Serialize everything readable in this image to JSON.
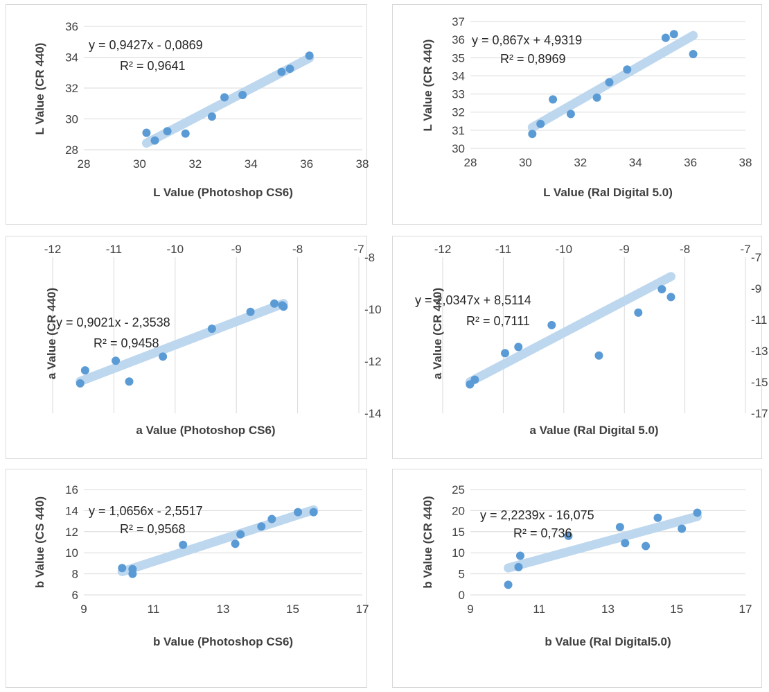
{
  "colors": {
    "marker": "#5b9bd5",
    "trend": "#bdd7ee",
    "gridline": "#d9d9d9",
    "text": "#404040"
  },
  "chart_data": [
    {
      "type": "scatter",
      "xlabel": "L Value (Photoshop CS6)",
      "ylabel": "L Value  (CR 440)",
      "xlim": [
        28,
        38
      ],
      "ylim": [
        28,
        36
      ],
      "xticks": [
        28,
        30,
        32,
        34,
        36,
        38
      ],
      "yticks": [
        28,
        30,
        32,
        34,
        36
      ],
      "x_axis_at": "bottom",
      "y_axis_at": "left",
      "equation": "y = 0,9427x - 0,0869",
      "r2": "R² = 0,9641",
      "trendline": {
        "slope": 0.9427,
        "intercept": -0.0869
      },
      "grid": "horizontal",
      "points": [
        {
          "x": 30.25,
          "y": 29.1
        },
        {
          "x": 30.55,
          "y": 28.6
        },
        {
          "x": 31.0,
          "y": 29.2
        },
        {
          "x": 31.65,
          "y": 29.05
        },
        {
          "x": 32.6,
          "y": 30.15
        },
        {
          "x": 33.05,
          "y": 31.4
        },
        {
          "x": 33.7,
          "y": 31.55
        },
        {
          "x": 35.1,
          "y": 33.05
        },
        {
          "x": 35.4,
          "y": 33.25
        },
        {
          "x": 36.1,
          "y": 34.1
        }
      ]
    },
    {
      "type": "scatter",
      "xlabel": "L Value (Ral Digital 5.0)",
      "ylabel": "L Value (CR 440)",
      "xlim": [
        28,
        38
      ],
      "ylim": [
        30,
        37
      ],
      "xticks": [
        28,
        30,
        32,
        34,
        36,
        38
      ],
      "yticks": [
        30,
        31,
        32,
        33,
        34,
        35,
        36,
        37
      ],
      "x_axis_at": "bottom",
      "y_axis_at": "left",
      "equation": "y = 0,867x + 4,9319",
      "r2": "R² = 0,8969",
      "trendline": {
        "slope": 0.867,
        "intercept": 4.9319
      },
      "grid": "horizontal",
      "points": [
        {
          "x": 30.25,
          "y": 30.8
        },
        {
          "x": 30.55,
          "y": 31.35
        },
        {
          "x": 31.0,
          "y": 32.7
        },
        {
          "x": 31.65,
          "y": 31.9
        },
        {
          "x": 32.6,
          "y": 32.8
        },
        {
          "x": 33.05,
          "y": 33.65
        },
        {
          "x": 33.7,
          "y": 34.35
        },
        {
          "x": 35.1,
          "y": 36.1
        },
        {
          "x": 35.4,
          "y": 36.3
        },
        {
          "x": 36.1,
          "y": 35.2
        }
      ]
    },
    {
      "type": "scatter",
      "xlabel": "a Value (Photoshop CS6)",
      "ylabel": "a Value (CR 440)",
      "xlim": [
        -12,
        -7
      ],
      "ylim": [
        -14,
        -8
      ],
      "xticks": [
        -12,
        -11,
        -10,
        -9,
        -8,
        -7
      ],
      "yticks": [
        -14,
        -12,
        -10,
        -8
      ],
      "x_axis_at": "top",
      "y_axis_at": "right",
      "equation": "y = 0,9021x - 2,3538",
      "r2": "R² = 0,9458",
      "trendline": {
        "slope": 0.9021,
        "intercept": -2.3538
      },
      "grid": "vertical",
      "points": [
        {
          "x": -11.55,
          "y": -12.85
        },
        {
          "x": -11.47,
          "y": -12.35
        },
        {
          "x": -10.97,
          "y": -11.98
        },
        {
          "x": -10.75,
          "y": -12.78
        },
        {
          "x": -10.2,
          "y": -11.82
        },
        {
          "x": -9.4,
          "y": -10.75
        },
        {
          "x": -8.77,
          "y": -10.1
        },
        {
          "x": -8.38,
          "y": -9.78
        },
        {
          "x": -8.25,
          "y": -9.85
        },
        {
          "x": -8.23,
          "y": -9.9
        }
      ]
    },
    {
      "type": "scatter",
      "xlabel": "a Value  (Ral Digital 5.0)",
      "ylabel": "a Value (CR 440)",
      "xlim": [
        -12,
        -7
      ],
      "ylim": [
        -17,
        -7
      ],
      "xticks": [
        -12,
        -11,
        -10,
        -9,
        -8,
        -7
      ],
      "yticks": [
        -17,
        -15,
        -13,
        -11,
        -9,
        -7
      ],
      "x_axis_at": "top",
      "y_axis_at": "right",
      "equation": "y = 2,0347x + 8,5114",
      "r2": "R² = 0,7111",
      "trendline": {
        "slope": 2.0347,
        "intercept": 8.5114
      },
      "grid": "vertical",
      "points": [
        {
          "x": -11.55,
          "y": -15.15
        },
        {
          "x": -11.47,
          "y": -14.85
        },
        {
          "x": -10.97,
          "y": -13.15
        },
        {
          "x": -10.75,
          "y": -12.75
        },
        {
          "x": -10.2,
          "y": -11.35
        },
        {
          "x": -9.42,
          "y": -13.3
        },
        {
          "x": -8.77,
          "y": -10.55
        },
        {
          "x": -8.38,
          "y": -9.05
        },
        {
          "x": -8.23,
          "y": -9.55
        }
      ]
    },
    {
      "type": "scatter",
      "xlabel": "b Value (Photoshop CS6)",
      "ylabel": "b Value (CS 440)",
      "xlim": [
        9,
        17
      ],
      "ylim": [
        6,
        16
      ],
      "xticks": [
        9,
        11,
        13,
        15,
        17
      ],
      "yticks": [
        6,
        8,
        10,
        12,
        14,
        16
      ],
      "x_axis_at": "bottom",
      "y_axis_at": "left",
      "equation": "y = 1,0656x - 2,5517",
      "r2": "R² = 0,9568",
      "trendline": {
        "slope": 1.0656,
        "intercept": -2.5517
      },
      "grid": "horizontal",
      "points": [
        {
          "x": 10.1,
          "y": 8.55
        },
        {
          "x": 10.4,
          "y": 8.45
        },
        {
          "x": 10.4,
          "y": 8.0
        },
        {
          "x": 11.85,
          "y": 10.75
        },
        {
          "x": 13.35,
          "y": 10.85
        },
        {
          "x": 13.5,
          "y": 11.75
        },
        {
          "x": 14.1,
          "y": 12.5
        },
        {
          "x": 14.4,
          "y": 13.2
        },
        {
          "x": 15.15,
          "y": 13.85
        },
        {
          "x": 15.6,
          "y": 13.85
        }
      ]
    },
    {
      "type": "scatter",
      "xlabel": "b Value (Ral Digital5.0)",
      "ylabel": "b Value (CR 440)",
      "xlim": [
        9,
        17
      ],
      "ylim": [
        0,
        25
      ],
      "xticks": [
        9,
        11,
        13,
        15,
        17
      ],
      "yticks": [
        0,
        5,
        10,
        15,
        20,
        25
      ],
      "x_axis_at": "bottom",
      "y_axis_at": "left",
      "equation": "y = 2,2239x - 16,075",
      "r2": "R² = 0,736",
      "trendline": {
        "slope": 2.2239,
        "intercept": -16.075
      },
      "grid": "horizontal",
      "points": [
        {
          "x": 10.1,
          "y": 2.4
        },
        {
          "x": 10.4,
          "y": 6.6
        },
        {
          "x": 10.45,
          "y": 9.3
        },
        {
          "x": 11.85,
          "y": 14.0
        },
        {
          "x": 13.35,
          "y": 16.1
        },
        {
          "x": 13.5,
          "y": 12.3
        },
        {
          "x": 14.1,
          "y": 11.6
        },
        {
          "x": 14.45,
          "y": 18.3
        },
        {
          "x": 15.15,
          "y": 15.7
        },
        {
          "x": 15.6,
          "y": 19.5
        }
      ]
    }
  ]
}
